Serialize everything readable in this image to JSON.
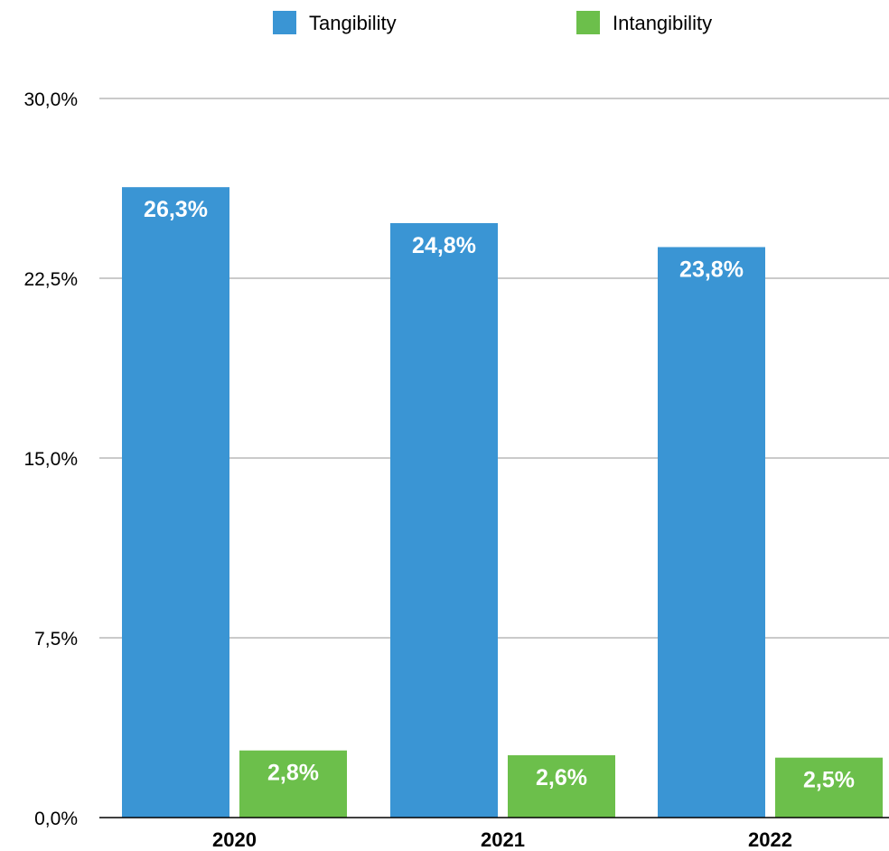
{
  "chart_data": {
    "type": "bar",
    "categories": [
      "2020",
      "2021",
      "2022"
    ],
    "series": [
      {
        "name": "Tangibility",
        "values": [
          26.3,
          24.8,
          23.8
        ],
        "labels": [
          "26,3%",
          "24,8%",
          "23,8%"
        ],
        "color": "#3a95d4"
      },
      {
        "name": "Intangibility",
        "values": [
          2.8,
          2.6,
          2.5
        ],
        "labels": [
          "2,8%",
          "2,6%",
          "2,5%"
        ],
        "color": "#6cbf4b"
      }
    ],
    "ylim": [
      0,
      30
    ],
    "yticks": [
      0,
      7.5,
      15,
      22.5,
      30
    ],
    "ytick_labels": [
      "0,0%",
      "7,5%",
      "15,0%",
      "22,5%",
      "30,0%"
    ],
    "grid": true,
    "legend_position": "top-center",
    "title": "",
    "xlabel": "",
    "ylabel": ""
  }
}
